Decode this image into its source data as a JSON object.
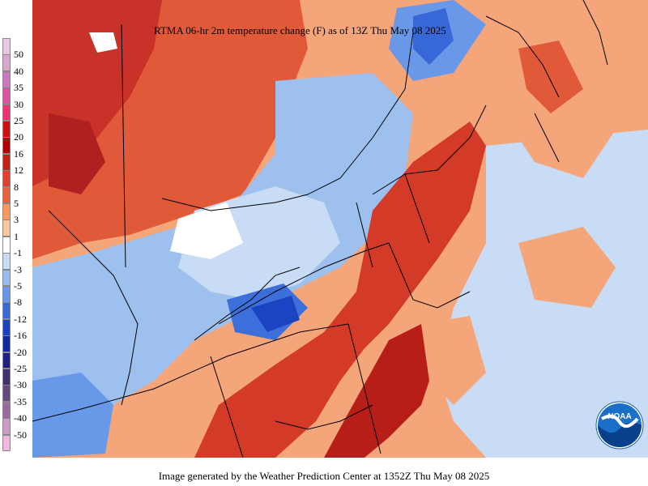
{
  "map": {
    "title": "RTMA 06-hr 2m temperature change (F) as of 13Z Thu May 08 2025",
    "footer": "Image generated by the Weather Prediction Center at 1352Z Thu May 08 2025",
    "logo_text": "NOAA"
  },
  "legend": {
    "labels": [
      "50",
      "40",
      "35",
      "30",
      "25",
      "20",
      "16",
      "12",
      "8",
      "5",
      "3",
      "1",
      "-1",
      "-3",
      "-5",
      "-8",
      "-12",
      "-16",
      "-20",
      "-25",
      "-30",
      "-35",
      "-40",
      "-50"
    ],
    "colors": [
      "#e8c8e0",
      "#d8a8d0",
      "#c878c0",
      "#e050a0",
      "#f03070",
      "#d01010",
      "#b00000",
      "#c82018",
      "#e04030",
      "#e86040",
      "#f89860",
      "#fcc8a0",
      "#ffffff",
      "#c8dcf8",
      "#98bcf0",
      "#6898e8",
      "#3868d8",
      "#1840c0",
      "#1028a0",
      "#202080",
      "#403070",
      "#684880",
      "#9868a0",
      "#d098c8",
      "#f0b8e0"
    ]
  }
}
